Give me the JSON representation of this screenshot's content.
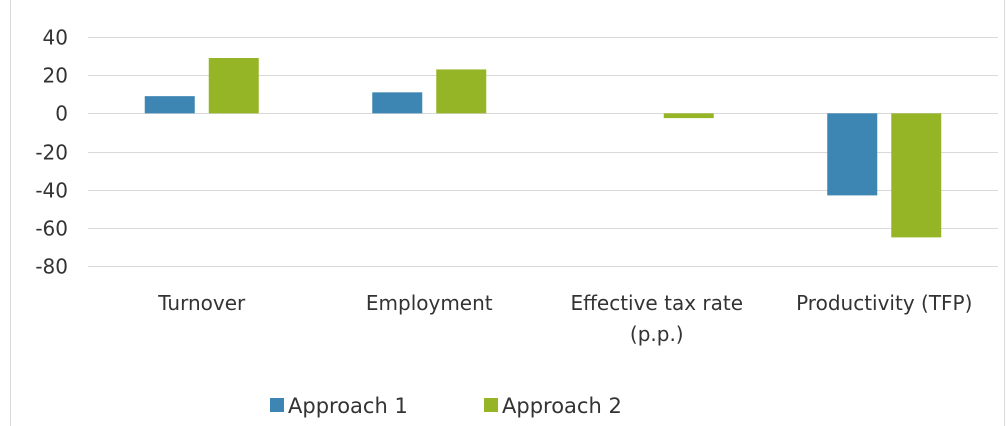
{
  "chart_data": {
    "type": "bar",
    "categories": [
      "Turnover",
      "Employment",
      "Effective tax rate (p.p.)",
      "Productivity (TFP)"
    ],
    "category_lines": [
      [
        "Turnover"
      ],
      [
        "Employment"
      ],
      [
        "Effective tax rate",
        "(p.p.)"
      ],
      [
        "Productivity (TFP)"
      ]
    ],
    "series": [
      {
        "name": "Approach 1",
        "values": [
          9,
          11,
          null,
          -43
        ],
        "color": "#3d85b3"
      },
      {
        "name": "Approach 2",
        "values": [
          29,
          23,
          -2.5,
          -65
        ],
        "color": "#95b527"
      }
    ],
    "ylim": [
      -80,
      40
    ],
    "yticks": [
      40,
      20,
      0,
      -20,
      -40,
      -60,
      -80
    ],
    "grid": true,
    "gridline_color": "#d9d9d9",
    "legend": "bottom",
    "title": "",
    "xlabel": "",
    "ylabel": ""
  }
}
